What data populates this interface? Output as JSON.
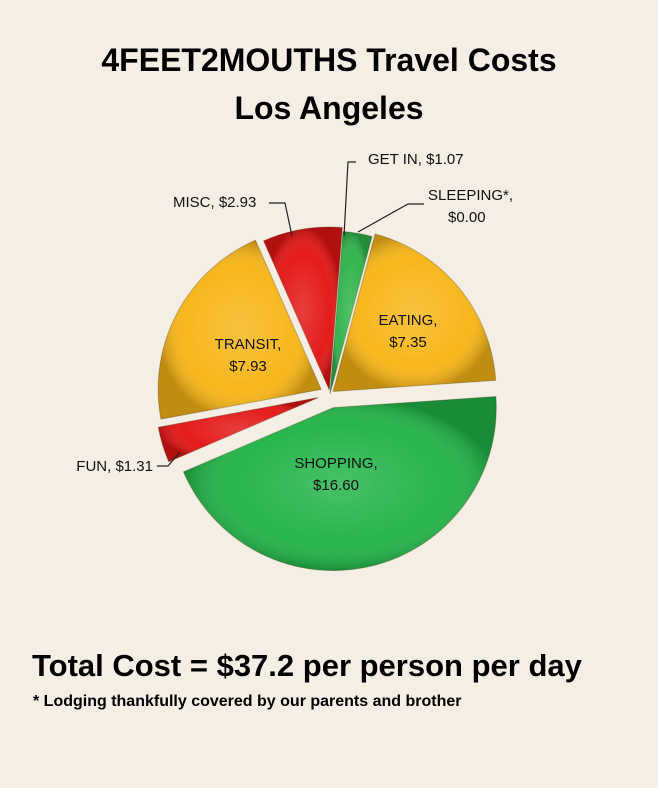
{
  "chart_data": {
    "type": "pie",
    "title_line1": "4FEET2MOUTHS    Travel Costs",
    "title_line2": "Los Angeles",
    "slices": [
      {
        "name": "GET IN",
        "value": 1.07,
        "label_line1": "GET IN, $1.07",
        "label_line2": "",
        "color": "#2fb34a"
      },
      {
        "name": "SLEEPING*",
        "value": 0.0,
        "label_line1": "SLEEPING*,",
        "label_line2": "$0.00",
        "color": "#2fb34a"
      },
      {
        "name": "EATING",
        "value": 7.35,
        "label_line1": "EATING,",
        "label_line2": "$7.35",
        "color": "#f7b516"
      },
      {
        "name": "SHOPPING",
        "value": 16.6,
        "label_line1": "SHOPPING,",
        "label_line2": "$16.60",
        "color": "#21b347"
      },
      {
        "name": "FUN",
        "value": 1.31,
        "label_line1": "FUN, $1.31",
        "label_line2": "",
        "color": "#e31414"
      },
      {
        "name": "TRANSIT",
        "value": 7.93,
        "label_line1": "TRANSIT,",
        "label_line2": "$7.93",
        "color": "#f7b516"
      },
      {
        "name": "MISC",
        "value": 2.93,
        "label_line1": "MISC, $2.93",
        "label_line2": "",
        "color": "#e31414"
      }
    ]
  },
  "footer": {
    "total_text": "Total Cost = $37.2 per person per day",
    "note_text": "* Lodging thankfully covered by our parents and brother"
  }
}
